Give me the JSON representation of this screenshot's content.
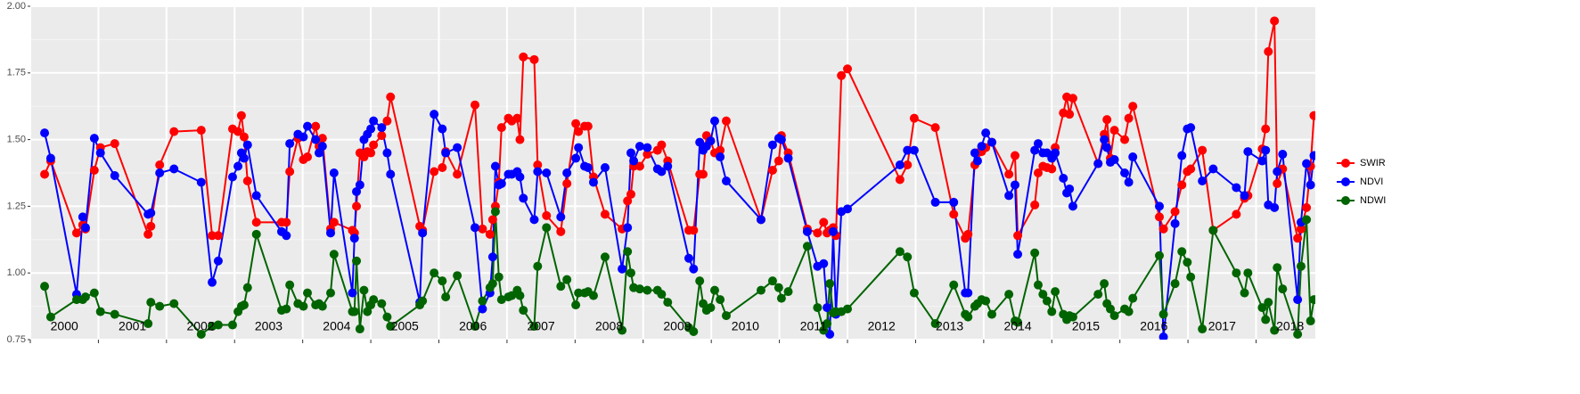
{
  "chart_data": {
    "type": "line",
    "x": [
      2000.21,
      2000.3,
      2000.68,
      2000.77,
      2000.81,
      2000.94,
      2001.03,
      2001.24,
      2001.73,
      2001.77,
      2001.9,
      2002.11,
      2002.51,
      2002.67,
      2002.76,
      2002.97,
      2003.05,
      2003.1,
      2003.14,
      2003.19,
      2003.32,
      2003.69,
      2003.76,
      2003.81,
      2003.93,
      2004.01,
      2004.07,
      2004.19,
      2004.24,
      2004.29,
      2004.41,
      2004.46,
      2004.73,
      2004.76,
      2004.79,
      2004.84,
      2004.9,
      2004.95,
      2005.0,
      2005.04,
      2005.16,
      2005.24,
      2005.29,
      2005.72,
      2005.76,
      2005.93,
      2006.05,
      2006.1,
      2006.27,
      2006.53,
      2006.64,
      2006.75,
      2006.79,
      2006.83,
      2006.88,
      2006.92,
      2007.02,
      2007.07,
      2007.15,
      2007.19,
      2007.24,
      2007.4,
      2007.45,
      2007.58,
      2007.79,
      2007.88,
      2008.01,
      2008.05,
      2008.14,
      2008.19,
      2008.27,
      2008.44,
      2008.69,
      2008.77,
      2008.82,
      2008.86,
      2008.95,
      2009.06,
      2009.21,
      2009.27,
      2009.36,
      2009.67,
      2009.74,
      2009.83,
      2009.88,
      2009.93,
      2009.99,
      2010.05,
      2010.13,
      2010.22,
      2010.73,
      2010.9,
      2010.99,
      2011.03,
      2011.13,
      2011.41,
      2011.56,
      2011.65,
      2011.7,
      2011.74,
      2011.79,
      2011.83,
      2011.91,
      2012.0,
      2012.77,
      2012.88,
      2012.98,
      2013.29,
      2013.56,
      2013.73,
      2013.77,
      2013.87,
      2013.91,
      2013.97,
      2014.03,
      2014.12,
      2014.37,
      2014.46,
      2014.5,
      2014.75,
      2014.8,
      2014.87,
      2014.93,
      2015.0,
      2015.05,
      2015.17,
      2015.22,
      2015.26,
      2015.31,
      2015.68,
      2015.77,
      2015.81,
      2015.86,
      2015.92,
      2016.07,
      2016.13,
      2016.19,
      2016.58,
      2016.64,
      2016.81,
      2016.91,
      2016.99,
      2017.04,
      2017.21,
      2017.37,
      2017.71,
      2017.83,
      2017.88,
      2018.09,
      2018.14,
      2018.18,
      2018.27,
      2018.31,
      2018.39,
      2018.61,
      2018.66,
      2018.74,
      2018.8,
      2018.85
    ],
    "series": [
      {
        "name": "SWIR",
        "color": "#ff0000",
        "values": [
          1.37,
          1.42,
          1.15,
          1.18,
          1.165,
          1.385,
          1.47,
          1.485,
          1.145,
          1.175,
          1.405,
          1.53,
          1.535,
          1.14,
          1.14,
          1.54,
          1.53,
          1.59,
          1.51,
          1.345,
          1.19,
          1.19,
          1.19,
          1.38,
          1.505,
          1.425,
          1.435,
          1.55,
          1.475,
          1.505,
          1.165,
          1.19,
          1.16,
          1.15,
          1.25,
          1.45,
          1.435,
          1.455,
          1.45,
          1.48,
          1.515,
          1.57,
          1.66,
          1.175,
          1.16,
          1.38,
          1.395,
          1.455,
          1.37,
          1.63,
          1.165,
          1.145,
          1.2,
          1.25,
          1.34,
          1.545,
          1.58,
          1.57,
          1.58,
          1.5,
          1.81,
          1.8,
          1.405,
          1.215,
          1.155,
          1.335,
          1.56,
          1.53,
          1.55,
          1.55,
          1.36,
          1.22,
          1.165,
          1.27,
          1.295,
          1.4,
          1.4,
          1.445,
          1.46,
          1.48,
          1.42,
          1.16,
          1.16,
          1.37,
          1.37,
          1.515,
          1.495,
          1.45,
          1.46,
          1.57,
          1.2,
          1.385,
          1.42,
          1.515,
          1.45,
          1.165,
          1.15,
          1.19,
          1.15,
          1.16,
          1.17,
          1.14,
          1.74,
          1.765,
          1.35,
          1.405,
          1.58,
          1.545,
          1.22,
          1.13,
          1.145,
          1.405,
          1.45,
          1.455,
          1.47,
          1.49,
          1.37,
          1.44,
          1.14,
          1.255,
          1.375,
          1.4,
          1.395,
          1.39,
          1.47,
          1.6,
          1.66,
          1.595,
          1.655,
          1.41,
          1.52,
          1.575,
          1.43,
          1.535,
          1.5,
          1.58,
          1.625,
          1.21,
          1.165,
          1.23,
          1.33,
          1.38,
          1.39,
          1.46,
          1.16,
          1.22,
          1.28,
          1.29,
          1.465,
          1.54,
          1.83,
          1.945,
          1.335,
          1.39,
          1.13,
          1.165,
          1.245,
          1.4,
          1.59
        ]
      },
      {
        "name": "NDVI",
        "color": "#0000ff",
        "values": [
          1.525,
          1.43,
          0.92,
          1.21,
          1.17,
          1.505,
          1.45,
          1.365,
          1.22,
          1.225,
          1.375,
          1.39,
          1.34,
          0.965,
          1.045,
          1.36,
          1.4,
          1.45,
          1.43,
          1.48,
          1.29,
          1.155,
          1.14,
          1.485,
          1.52,
          1.51,
          1.55,
          1.5,
          1.45,
          1.475,
          1.15,
          1.375,
          0.925,
          1.13,
          1.305,
          1.33,
          1.5,
          1.52,
          1.54,
          1.57,
          1.545,
          1.45,
          1.37,
          0.89,
          1.15,
          1.595,
          1.54,
          1.45,
          1.47,
          1.17,
          0.865,
          0.925,
          1.06,
          1.4,
          1.33,
          1.335,
          1.37,
          1.37,
          1.38,
          1.36,
          1.28,
          1.2,
          1.38,
          1.375,
          1.21,
          1.375,
          1.43,
          1.47,
          1.4,
          1.395,
          1.34,
          1.395,
          1.015,
          1.17,
          1.45,
          1.42,
          1.475,
          1.47,
          1.39,
          1.38,
          1.4,
          1.055,
          1.015,
          1.49,
          1.46,
          1.475,
          1.495,
          1.57,
          1.435,
          1.345,
          1.2,
          1.48,
          1.505,
          1.5,
          1.43,
          1.155,
          1.025,
          1.035,
          0.87,
          0.77,
          1.155,
          0.845,
          1.23,
          1.24,
          1.405,
          1.46,
          1.46,
          1.265,
          1.265,
          0.925,
          0.925,
          1.45,
          1.42,
          1.475,
          1.525,
          1.49,
          1.29,
          1.33,
          1.07,
          1.46,
          1.485,
          1.45,
          1.45,
          1.43,
          1.45,
          1.355,
          1.3,
          1.315,
          1.25,
          1.41,
          1.5,
          1.47,
          1.415,
          1.425,
          1.375,
          1.34,
          1.435,
          1.25,
          0.76,
          1.185,
          1.44,
          1.54,
          1.545,
          1.345,
          1.39,
          1.32,
          1.29,
          1.455,
          1.42,
          1.46,
          1.255,
          1.245,
          1.38,
          1.445,
          0.9,
          1.19,
          1.41,
          1.33,
          1.44
        ]
      },
      {
        "name": "NDWI",
        "color": "#006400",
        "values": [
          0.95,
          0.835,
          0.9,
          0.9,
          0.91,
          0.925,
          0.855,
          0.845,
          0.81,
          0.89,
          0.875,
          0.885,
          0.77,
          0.8,
          0.805,
          0.805,
          0.855,
          0.875,
          0.88,
          0.945,
          1.145,
          0.86,
          0.865,
          0.955,
          0.885,
          0.875,
          0.925,
          0.88,
          0.885,
          0.875,
          0.925,
          1.07,
          0.855,
          0.855,
          1.045,
          0.79,
          0.935,
          0.855,
          0.88,
          0.9,
          0.885,
          0.835,
          0.8,
          0.88,
          0.895,
          1.0,
          0.97,
          0.91,
          0.99,
          0.8,
          0.895,
          0.945,
          0.96,
          1.23,
          0.985,
          0.9,
          0.91,
          0.915,
          0.935,
          0.915,
          0.86,
          0.8,
          1.025,
          1.17,
          0.95,
          0.975,
          0.88,
          0.925,
          0.925,
          0.93,
          0.915,
          1.06,
          0.785,
          1.08,
          1.0,
          0.945,
          0.94,
          0.935,
          0.935,
          0.92,
          0.89,
          0.795,
          0.78,
          0.97,
          0.885,
          0.86,
          0.87,
          0.935,
          0.9,
          0.84,
          0.935,
          0.97,
          0.945,
          0.905,
          0.93,
          1.1,
          0.87,
          0.785,
          0.81,
          0.96,
          0.85,
          0.855,
          0.855,
          0.865,
          1.08,
          1.06,
          0.925,
          0.81,
          0.955,
          0.845,
          0.835,
          0.875,
          0.885,
          0.9,
          0.895,
          0.845,
          0.92,
          0.82,
          0.815,
          1.075,
          0.955,
          0.92,
          0.895,
          0.855,
          0.93,
          0.845,
          0.825,
          0.84,
          0.835,
          0.92,
          0.96,
          0.885,
          0.865,
          0.84,
          0.865,
          0.855,
          0.905,
          1.065,
          0.845,
          0.96,
          1.08,
          1.04,
          0.985,
          0.79,
          1.16,
          1.0,
          0.925,
          1.0,
          0.87,
          0.825,
          0.89,
          0.785,
          1.02,
          0.94,
          0.77,
          1.025,
          1.2,
          0.82,
          0.9
        ]
      }
    ],
    "xlim": [
      2000,
      2018.87
    ],
    "xticks": [
      {
        "value": 2000,
        "label": "2000"
      },
      {
        "value": 2001,
        "label": "2001"
      },
      {
        "value": 2002,
        "label": "2002"
      },
      {
        "value": 2003,
        "label": "2003"
      },
      {
        "value": 2004,
        "label": "2004"
      },
      {
        "value": 2005,
        "label": "2005"
      },
      {
        "value": 2006,
        "label": "2006"
      },
      {
        "value": 2007,
        "label": "2007"
      },
      {
        "value": 2008,
        "label": "2008"
      },
      {
        "value": 2009,
        "label": "2009"
      },
      {
        "value": 2010,
        "label": "2010"
      },
      {
        "value": 2011,
        "label": "2011"
      },
      {
        "value": 2012,
        "label": "2012"
      },
      {
        "value": 2013,
        "label": "2013"
      },
      {
        "value": 2014,
        "label": "2014"
      },
      {
        "value": 2015,
        "label": "2015"
      },
      {
        "value": 2016,
        "label": "2016"
      },
      {
        "value": 2017,
        "label": "2017"
      },
      {
        "value": 2018,
        "label": "2018"
      }
    ],
    "ylim": [
      0.75,
      2.0
    ],
    "yticks": [
      0.75,
      {
        "value": 1,
        "label": "1.00"
      },
      1.25,
      {
        "value": 1.5,
        "label": "1.50"
      },
      1.75,
      {
        "value": 2,
        "label": "2.00"
      }
    ],
    "grid": true,
    "legend": "right"
  }
}
